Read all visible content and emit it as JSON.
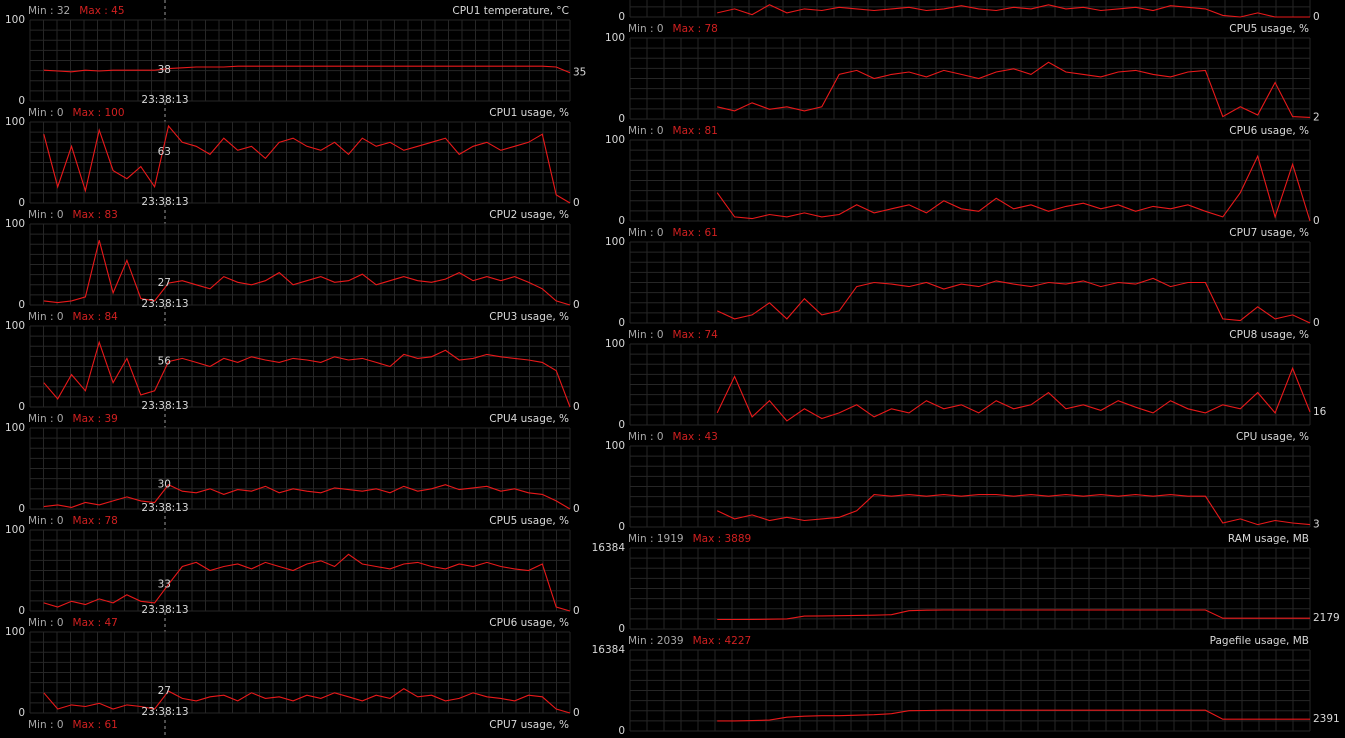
{
  "chart_data": [
    {
      "type": "line",
      "min_label": "Min : 32",
      "max_label": "Max : 45",
      "title": "CPU1 temperature, °C",
      "ylim": [
        0,
        100
      ],
      "yticks": [
        0,
        100
      ],
      "color": "#e8191a",
      "cursor_label": "23:38:13",
      "cursor_value": 38,
      "values": [
        null,
        38,
        37,
        36,
        38,
        37,
        38,
        38,
        38,
        38,
        40,
        41,
        42,
        42,
        42,
        43,
        43,
        43,
        43,
        43,
        43,
        43,
        43,
        43,
        43,
        43,
        43,
        43,
        43,
        43,
        43,
        43,
        43,
        43,
        43,
        43,
        43,
        43,
        42,
        35
      ]
    },
    {
      "type": "line",
      "min_label": "Min : 0",
      "max_label": "Max : 100",
      "title": "CPU1 usage, %",
      "ylim": [
        0,
        100
      ],
      "yticks": [
        0,
        100
      ],
      "color": "#e8191a",
      "cursor_label": "23:38:13",
      "cursor_value": 63,
      "values": [
        null,
        85,
        20,
        70,
        15,
        90,
        40,
        30,
        45,
        20,
        95,
        75,
        70,
        60,
        80,
        65,
        70,
        55,
        75,
        80,
        70,
        65,
        75,
        60,
        80,
        70,
        75,
        65,
        70,
        75,
        80,
        60,
        70,
        75,
        65,
        70,
        75,
        85,
        10,
        0
      ]
    },
    {
      "type": "line",
      "min_label": "Min : 0",
      "max_label": "Max : 83",
      "title": "CPU2 usage, %",
      "ylim": [
        0,
        100
      ],
      "yticks": [
        0,
        100
      ],
      "color": "#e8191a",
      "cursor_label": "23:38:13",
      "cursor_value": 27,
      "values": [
        null,
        5,
        3,
        5,
        10,
        80,
        15,
        55,
        8,
        5,
        27,
        30,
        25,
        20,
        35,
        28,
        25,
        30,
        40,
        25,
        30,
        35,
        28,
        30,
        38,
        25,
        30,
        35,
        30,
        28,
        32,
        40,
        30,
        35,
        30,
        35,
        28,
        20,
        5,
        0
      ]
    },
    {
      "type": "line",
      "min_label": "Min : 0",
      "max_label": "Max : 84",
      "title": "CPU3 usage, %",
      "ylim": [
        0,
        100
      ],
      "yticks": [
        0,
        100
      ],
      "color": "#e8191a",
      "cursor_label": "23:38:13",
      "cursor_value": 56,
      "values": [
        null,
        30,
        10,
        40,
        20,
        80,
        30,
        60,
        15,
        20,
        56,
        60,
        55,
        50,
        60,
        55,
        62,
        58,
        55,
        60,
        58,
        55,
        62,
        58,
        60,
        55,
        50,
        65,
        60,
        62,
        70,
        58,
        60,
        65,
        62,
        60,
        58,
        55,
        45,
        0
      ]
    },
    {
      "type": "line",
      "min_label": "Min : 0",
      "max_label": "Max : 39",
      "title": "CPU4 usage, %",
      "ylim": [
        0,
        100
      ],
      "yticks": [
        0,
        100
      ],
      "color": "#e8191a",
      "cursor_label": "23:38:13",
      "cursor_value": 30,
      "values": [
        null,
        3,
        5,
        2,
        8,
        5,
        10,
        15,
        10,
        8,
        30,
        22,
        20,
        25,
        18,
        24,
        22,
        28,
        20,
        25,
        22,
        20,
        26,
        24,
        22,
        25,
        20,
        28,
        22,
        25,
        30,
        24,
        26,
        28,
        22,
        25,
        20,
        18,
        10,
        0
      ]
    },
    {
      "type": "line",
      "min_label": "Min : 0",
      "max_label": "Max : 78",
      "title": "CPU5 usage, %",
      "ylim": [
        0,
        100
      ],
      "yticks": [
        0,
        100
      ],
      "color": "#e8191a",
      "cursor_label": "23:38:13",
      "cursor_value": 33,
      "values": [
        null,
        10,
        5,
        12,
        8,
        15,
        10,
        20,
        12,
        10,
        33,
        55,
        60,
        50,
        55,
        58,
        52,
        60,
        55,
        50,
        58,
        62,
        55,
        70,
        58,
        55,
        52,
        58,
        60,
        55,
        52,
        58,
        55,
        60,
        55,
        52,
        50,
        58,
        5,
        0
      ]
    },
    {
      "type": "line",
      "min_label": "Min : 0",
      "max_label": "Max : 47",
      "title": "CPU6 usage, %",
      "ylim": [
        0,
        100
      ],
      "yticks": [
        0,
        100
      ],
      "color": "#e8191a",
      "cursor_label": "23:38:13",
      "cursor_value": 27,
      "values": [
        null,
        25,
        5,
        10,
        8,
        12,
        5,
        10,
        8,
        5,
        27,
        18,
        15,
        20,
        22,
        15,
        25,
        18,
        20,
        15,
        22,
        18,
        25,
        20,
        15,
        22,
        18,
        30,
        20,
        22,
        15,
        18,
        25,
        20,
        18,
        15,
        22,
        20,
        5,
        0
      ]
    },
    {
      "type": "line",
      "min_label": "Min : 0",
      "max_label": "Max : 61",
      "title": "CPU7 usage, %"
    },
    {
      "type": "line",
      "ylim": [
        0,
        100
      ],
      "yticks": [
        0
      ],
      "color": "#e8191a",
      "values": [
        null,
        null,
        null,
        null,
        null,
        5,
        10,
        3,
        15,
        5,
        10,
        8,
        12,
        10,
        8,
        10,
        12,
        8,
        10,
        14,
        10,
        8,
        12,
        10,
        15,
        10,
        12,
        8,
        10,
        12,
        8,
        14,
        12,
        10,
        2,
        0,
        5,
        0,
        0,
        0
      ]
    },
    {
      "type": "line",
      "min_label": "Min : 0",
      "max_label": "Max : 78",
      "title": "CPU5 usage, %",
      "ylim": [
        0,
        100
      ],
      "yticks": [
        0,
        100
      ],
      "color": "#e8191a",
      "values": [
        null,
        null,
        null,
        null,
        null,
        15,
        10,
        20,
        12,
        15,
        10,
        15,
        55,
        60,
        50,
        55,
        58,
        52,
        60,
        55,
        50,
        58,
        62,
        55,
        70,
        58,
        55,
        52,
        58,
        60,
        55,
        52,
        58,
        60,
        3,
        15,
        5,
        45,
        3,
        2
      ]
    },
    {
      "type": "line",
      "min_label": "Min : 0",
      "max_label": "Max : 81",
      "title": "CPU6 usage, %",
      "ylim": [
        0,
        100
      ],
      "yticks": [
        0,
        100
      ],
      "color": "#e8191a",
      "values": [
        null,
        null,
        null,
        null,
        null,
        35,
        5,
        3,
        8,
        5,
        10,
        5,
        8,
        20,
        10,
        15,
        20,
        10,
        25,
        15,
        12,
        28,
        15,
        20,
        12,
        18,
        22,
        15,
        20,
        12,
        18,
        15,
        20,
        12,
        5,
        35,
        80,
        5,
        70,
        0
      ]
    },
    {
      "type": "line",
      "min_label": "Min : 0",
      "max_label": "Max : 61",
      "title": "CPU7 usage, %",
      "ylim": [
        0,
        100
      ],
      "yticks": [
        0,
        100
      ],
      "color": "#e8191a",
      "values": [
        null,
        null,
        null,
        null,
        null,
        15,
        5,
        10,
        25,
        5,
        30,
        10,
        15,
        45,
        50,
        48,
        45,
        50,
        42,
        48,
        45,
        52,
        48,
        45,
        50,
        48,
        52,
        45,
        50,
        48,
        55,
        45,
        50,
        50,
        5,
        3,
        20,
        5,
        10,
        0
      ]
    },
    {
      "type": "line",
      "min_label": "Min : 0",
      "max_label": "Max : 74",
      "title": "CPU8 usage, %",
      "ylim": [
        0,
        100
      ],
      "yticks": [
        0,
        100
      ],
      "color": "#e8191a",
      "values": [
        null,
        null,
        null,
        null,
        null,
        15,
        60,
        10,
        30,
        5,
        20,
        8,
        15,
        25,
        10,
        20,
        15,
        30,
        20,
        25,
        15,
        30,
        20,
        25,
        40,
        20,
        25,
        18,
        30,
        22,
        15,
        30,
        20,
        15,
        25,
        20,
        40,
        15,
        70,
        16
      ]
    },
    {
      "type": "line",
      "min_label": "Min : 0",
      "max_label": "Max : 43",
      "title": "CPU usage, %",
      "ylim": [
        0,
        100
      ],
      "yticks": [
        0,
        100
      ],
      "color": "#e8191a",
      "values": [
        null,
        null,
        null,
        null,
        null,
        20,
        10,
        15,
        8,
        12,
        8,
        10,
        12,
        20,
        40,
        38,
        40,
        38,
        40,
        38,
        40,
        40,
        38,
        40,
        38,
        40,
        38,
        40,
        38,
        40,
        38,
        40,
        38,
        38,
        5,
        10,
        3,
        8,
        5,
        3
      ]
    },
    {
      "type": "line",
      "min_label": "Min : 1919",
      "max_label": "Max : 3889",
      "title": "RAM usage, MB",
      "ylim": [
        0,
        16384
      ],
      "yticks": [
        0,
        16384
      ],
      "color": "#e8191a",
      "values": [
        null,
        null,
        null,
        null,
        null,
        1919,
        1919,
        1950,
        1990,
        2050,
        2600,
        2650,
        2700,
        2750,
        2800,
        2900,
        3700,
        3800,
        3850,
        3850,
        3850,
        3850,
        3850,
        3850,
        3850,
        3850,
        3850,
        3850,
        3850,
        3850,
        3850,
        3850,
        3850,
        3850,
        2179,
        2179,
        2179,
        2179,
        2179,
        2179
      ]
    },
    {
      "type": "line",
      "min_label": "Min : 2039",
      "max_label": "Max : 4227",
      "title": "Pagefile usage, MB",
      "ylim": [
        0,
        16384
      ],
      "yticks": [
        0,
        16384
      ],
      "color": "#e8191a",
      "values": [
        null,
        null,
        null,
        null,
        null,
        2039,
        2039,
        2100,
        2200,
        2800,
        3000,
        3100,
        3100,
        3200,
        3300,
        3500,
        4100,
        4150,
        4200,
        4200,
        4200,
        4200,
        4200,
        4200,
        4200,
        4200,
        4200,
        4200,
        4200,
        4200,
        4200,
        4200,
        4200,
        4200,
        2391,
        2391,
        2391,
        2391,
        2391,
        2391
      ]
    }
  ]
}
